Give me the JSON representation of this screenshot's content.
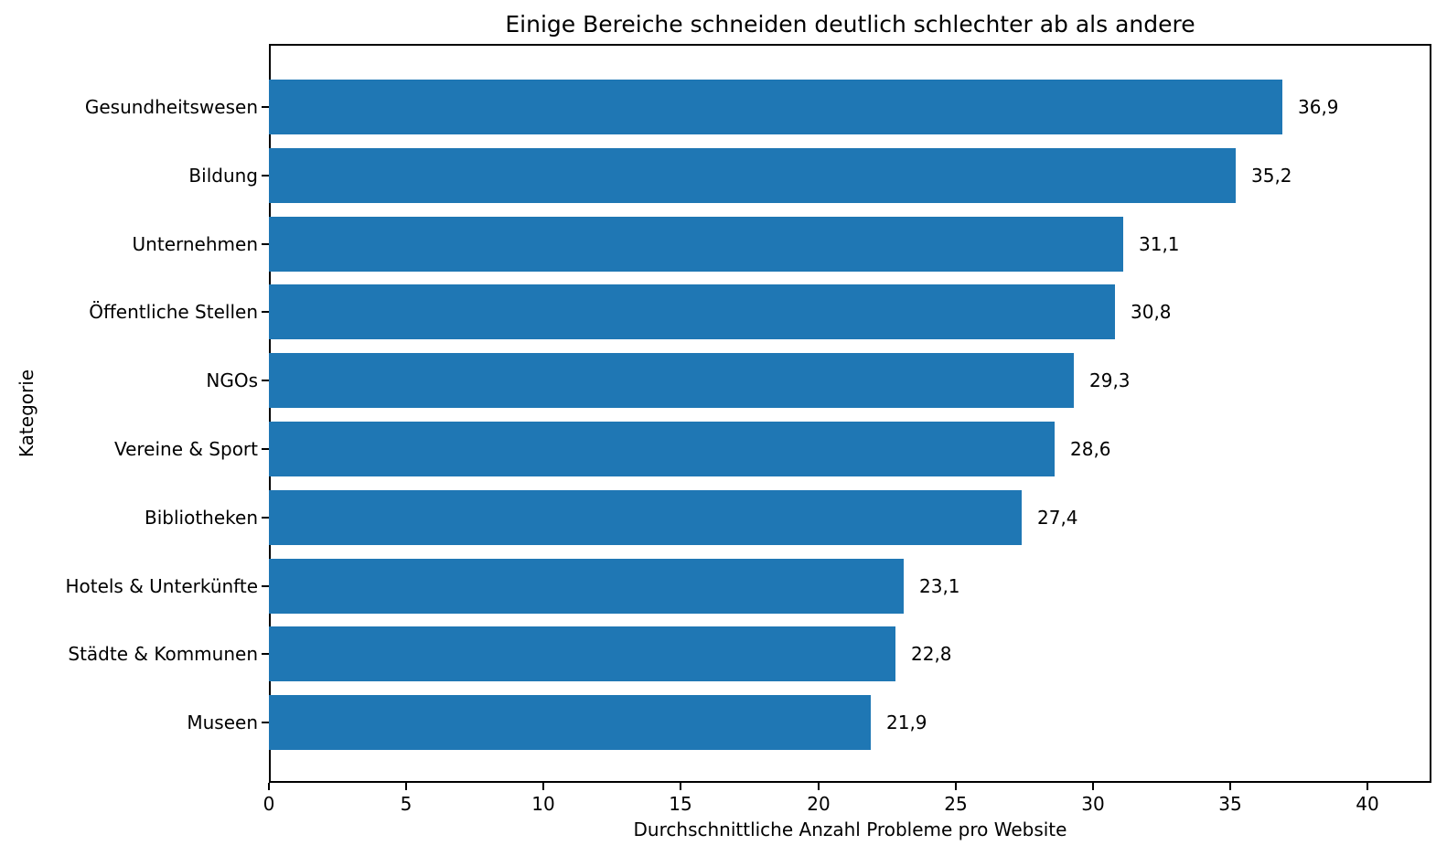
{
  "figure": {
    "background": "#ffffff"
  },
  "chart_data": {
    "type": "bar",
    "orientation": "horizontal",
    "title": "Einige Bereiche schneiden deutlich schlechter ab als andere",
    "xlabel": "Durchschnittliche Anzahl Probleme pro Website",
    "ylabel": "Kategorie",
    "categories": [
      "Gesundheitswesen",
      "Bildung",
      "Unternehmen",
      "Öffentliche Stellen",
      "NGOs",
      "Vereine & Sport",
      "Bibliotheken",
      "Hotels & Unterkünfte",
      "Städte & Kommunen",
      "Museen"
    ],
    "values": [
      36.9,
      35.2,
      31.1,
      30.8,
      29.3,
      28.6,
      27.4,
      23.1,
      22.8,
      21.9
    ],
    "value_labels": [
      "36,9",
      "35,2",
      "31,1",
      "30,8",
      "29,3",
      "28,6",
      "27,4",
      "23,1",
      "22,8",
      "21,9"
    ],
    "xticks": [
      "0",
      "5",
      "10",
      "15",
      "20",
      "25",
      "30",
      "35",
      "40"
    ],
    "xtick_values": [
      0,
      5,
      10,
      15,
      20,
      25,
      30,
      35,
      40
    ],
    "xlim": [
      0,
      42.33
    ],
    "grid": false,
    "legend_position": "none",
    "bar_color": "#1f77b4",
    "text_color": "#000000",
    "spine_color": "#000000"
  }
}
